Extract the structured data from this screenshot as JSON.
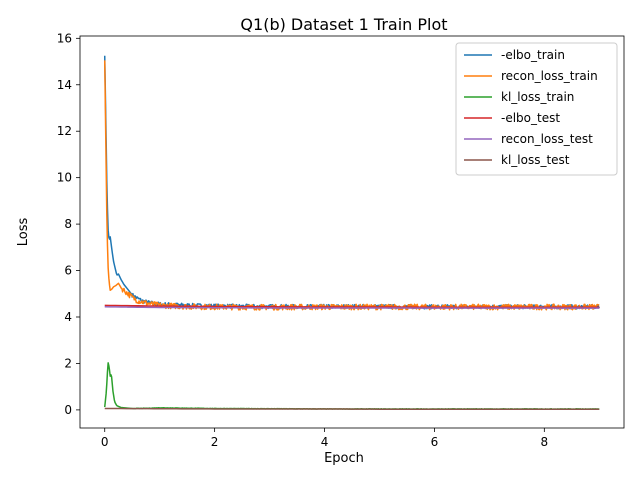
{
  "chart_data": {
    "type": "line",
    "title": "Q1(b) Dataset 1 Train Plot",
    "xlabel": "Epoch",
    "ylabel": "Loss",
    "xlim": [
      -0.45,
      9.45
    ],
    "ylim": [
      -0.78,
      16.1
    ],
    "xticks": [
      0,
      2,
      4,
      6,
      8
    ],
    "yticks": [
      0,
      2,
      4,
      6,
      8,
      10,
      12,
      14,
      16
    ],
    "legend_position": "top-right",
    "grid": false,
    "train_x_max": 9.0,
    "series": [
      {
        "name": "-elbo_train",
        "color": "#1f77b4",
        "points": [
          [
            0,
            15.25
          ],
          [
            0.02,
            12.5
          ],
          [
            0.04,
            9.5
          ],
          [
            0.06,
            7.8
          ],
          [
            0.08,
            7.3
          ],
          [
            0.1,
            7.45
          ],
          [
            0.13,
            6.9
          ],
          [
            0.16,
            6.4
          ],
          [
            0.19,
            6.1
          ],
          [
            0.22,
            5.8
          ],
          [
            0.25,
            5.85
          ],
          [
            0.3,
            5.6
          ],
          [
            0.35,
            5.4
          ],
          [
            0.4,
            5.25
          ],
          [
            0.45,
            5.1
          ],
          [
            0.5,
            4.95
          ],
          [
            0.6,
            4.8
          ],
          [
            0.7,
            4.68
          ],
          [
            0.8,
            4.62
          ],
          [
            0.9,
            4.58
          ],
          [
            1.0,
            4.55
          ],
          [
            1.5,
            4.5
          ],
          [
            2.0,
            4.47
          ],
          [
            3.0,
            4.45
          ],
          [
            4.0,
            4.45
          ],
          [
            5.0,
            4.45
          ],
          [
            6.0,
            4.44
          ],
          [
            7.0,
            4.44
          ],
          [
            8.0,
            4.44
          ],
          [
            9.0,
            4.44
          ]
        ],
        "noise": 0.09,
        "noise_from": 0.5
      },
      {
        "name": "recon_loss_train",
        "color": "#ff7f0e",
        "points": [
          [
            0,
            15.05
          ],
          [
            0.02,
            11.5
          ],
          [
            0.04,
            8.0
          ],
          [
            0.06,
            6.2
          ],
          [
            0.08,
            5.5
          ],
          [
            0.1,
            5.15
          ],
          [
            0.13,
            5.2
          ],
          [
            0.16,
            5.3
          ],
          [
            0.2,
            5.35
          ],
          [
            0.25,
            5.45
          ],
          [
            0.3,
            5.25
          ],
          [
            0.4,
            5.05
          ],
          [
            0.5,
            4.85
          ],
          [
            0.6,
            4.7
          ],
          [
            0.8,
            4.58
          ],
          [
            1.0,
            4.5
          ],
          [
            1.5,
            4.45
          ],
          [
            2.0,
            4.43
          ],
          [
            3.0,
            4.42
          ],
          [
            4.0,
            4.43
          ],
          [
            5.0,
            4.43
          ],
          [
            6.0,
            4.43
          ],
          [
            7.0,
            4.43
          ],
          [
            8.0,
            4.43
          ],
          [
            9.0,
            4.43
          ]
        ],
        "noise": 0.12,
        "noise_from": 0.3
      },
      {
        "name": "kl_loss_train",
        "color": "#2ca02c",
        "points": [
          [
            0,
            0.12
          ],
          [
            0.03,
            0.8
          ],
          [
            0.06,
            2.05
          ],
          [
            0.08,
            1.85
          ],
          [
            0.1,
            1.45
          ],
          [
            0.12,
            1.55
          ],
          [
            0.15,
            0.8
          ],
          [
            0.18,
            0.35
          ],
          [
            0.22,
            0.18
          ],
          [
            0.3,
            0.1
          ],
          [
            0.5,
            0.06
          ],
          [
            0.8,
            0.07
          ],
          [
            1.0,
            0.09
          ],
          [
            1.3,
            0.08
          ],
          [
            1.6,
            0.07
          ],
          [
            2.0,
            0.06
          ],
          [
            3.0,
            0.05
          ],
          [
            4.0,
            0.04
          ],
          [
            5.0,
            0.04
          ],
          [
            6.0,
            0.04
          ],
          [
            7.0,
            0.04
          ],
          [
            8.0,
            0.04
          ],
          [
            9.0,
            0.04
          ]
        ],
        "noise": 0.008,
        "noise_from": 0.5
      },
      {
        "name": "-elbo_test",
        "color": "#d62728",
        "points": [
          [
            0,
            4.5
          ],
          [
            1,
            4.47
          ],
          [
            2,
            4.45
          ],
          [
            3,
            4.44
          ],
          [
            4,
            4.43
          ],
          [
            5,
            4.43
          ],
          [
            6,
            4.42
          ],
          [
            7,
            4.42
          ],
          [
            8,
            4.42
          ],
          [
            9,
            4.42
          ]
        ],
        "noise": 0,
        "noise_from": 9
      },
      {
        "name": "recon_loss_test",
        "color": "#9467bd",
        "points": [
          [
            0,
            4.44
          ],
          [
            1,
            4.41
          ],
          [
            2,
            4.4
          ],
          [
            3,
            4.39
          ],
          [
            4,
            4.39
          ],
          [
            5,
            4.39
          ],
          [
            6,
            4.38
          ],
          [
            7,
            4.38
          ],
          [
            8,
            4.38
          ],
          [
            9,
            4.38
          ]
        ],
        "noise": 0,
        "noise_from": 9
      },
      {
        "name": "kl_loss_test",
        "color": "#8c564b",
        "points": [
          [
            0,
            0.06
          ],
          [
            1,
            0.05
          ],
          [
            2,
            0.04
          ],
          [
            3,
            0.04
          ],
          [
            4,
            0.04
          ],
          [
            5,
            0.03
          ],
          [
            6,
            0.03
          ],
          [
            7,
            0.03
          ],
          [
            8,
            0.03
          ],
          [
            9,
            0.03
          ]
        ],
        "noise": 0,
        "noise_from": 9
      }
    ]
  }
}
